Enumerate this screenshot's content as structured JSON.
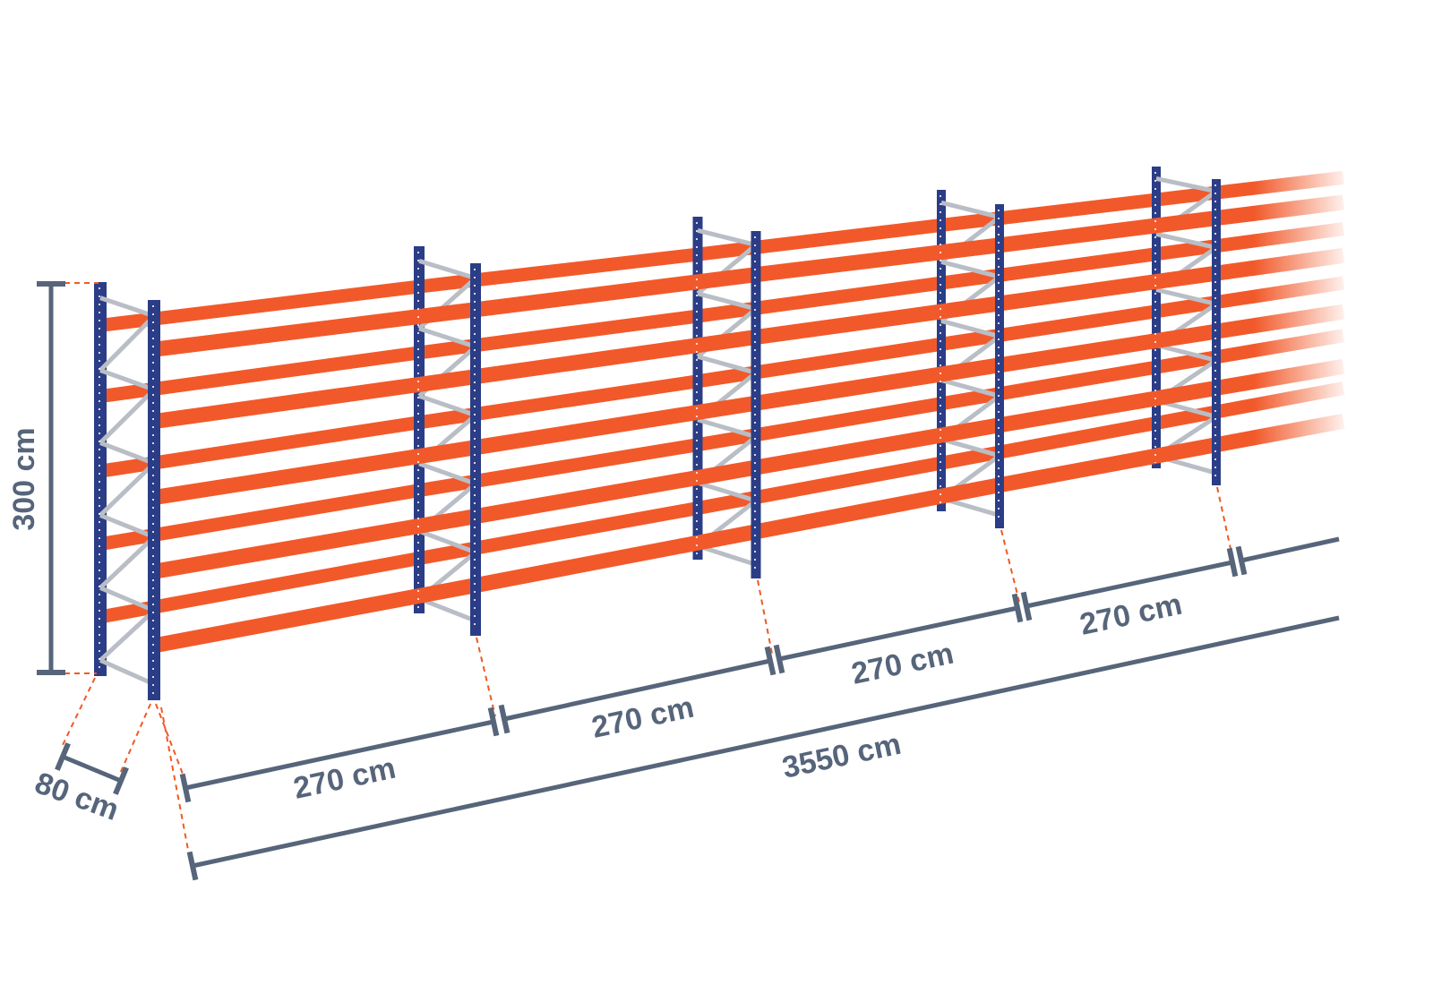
{
  "colors": {
    "upright": "#2b3d86",
    "beam": "#f2592a",
    "brace": "#b9bec6",
    "dimension": "#56657a",
    "guide": "#f05a22"
  },
  "dimensions": {
    "height": "300 cm",
    "depth": "80 cm",
    "bays": [
      "270 cm",
      "270 cm",
      "270 cm",
      "270 cm"
    ],
    "total_length": "3550 cm"
  }
}
